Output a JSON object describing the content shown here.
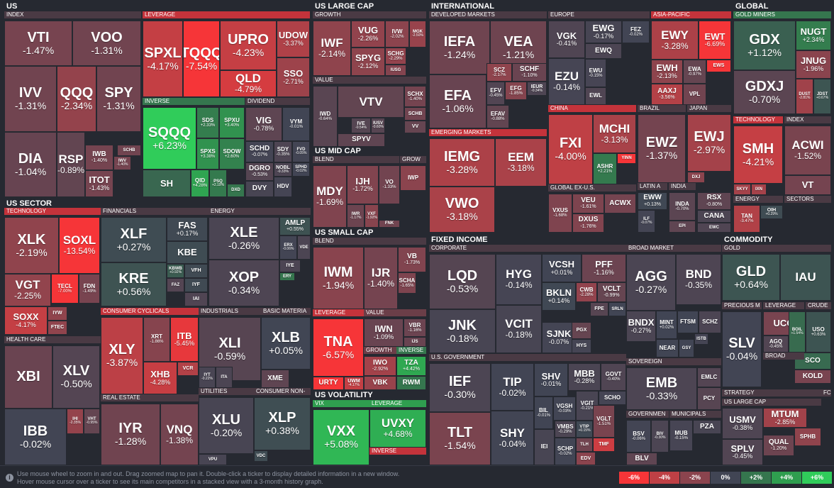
{
  "help": {
    "line1": "Use mouse wheel to zoom in and out. Drag zoomed map to pan it. Double-click a ticker to display detailed information in a new window.",
    "line2": "Hover mouse cursor over a ticker to see its main competitors in a stacked view with a 3-month history graph."
  },
  "legend": [
    {
      "label": "-6%",
      "color": "#f63538"
    },
    {
      "label": "-4%",
      "color": "#bf4045"
    },
    {
      "label": "-2%",
      "color": "#8b444e"
    },
    {
      "label": "0%",
      "color": "#414554"
    },
    {
      "label": "+2%",
      "color": "#35764e"
    },
    {
      "label": "+4%",
      "color": "#2f9e4f"
    },
    {
      "label": "+6%",
      "color": "#30cc5a"
    }
  ],
  "headers": [
    {
      "id": "us",
      "label": "US"
    },
    {
      "id": "us-large-cap",
      "label": "US LARGE CAP"
    },
    {
      "id": "international",
      "label": "INTERNATIONAL"
    },
    {
      "id": "global",
      "label": "GLOBAL"
    },
    {
      "id": "us-sector",
      "label": "US SECTOR"
    },
    {
      "id": "us-mid-cap",
      "label": "US MID CAP"
    },
    {
      "id": "us-small-cap",
      "label": "US SMALL CAP"
    },
    {
      "id": "fixed-income",
      "label": "FIXED INCOME"
    },
    {
      "id": "commodity",
      "label": "COMMODITY"
    },
    {
      "id": "us-volatility",
      "label": "US VOLATILITY"
    }
  ],
  "subheaders": [
    {
      "id": "index",
      "label": "INDEX"
    },
    {
      "id": "leverage",
      "label": "LEVERAGE"
    },
    {
      "id": "inverse",
      "label": "INVERSE"
    },
    {
      "id": "dividend",
      "label": "DIVIDEND"
    },
    {
      "id": "growth",
      "label": "GROWTH"
    },
    {
      "id": "value",
      "label": "VALUE"
    },
    {
      "id": "developed-markets",
      "label": "DEVELOPED MARKETS"
    },
    {
      "id": "europe",
      "label": "EUROPE"
    },
    {
      "id": "asia-pacific",
      "label": "ASIA-PACIFIC"
    },
    {
      "id": "china",
      "label": "CHINA"
    },
    {
      "id": "brazil",
      "label": "BRAZIL"
    },
    {
      "id": "japan",
      "label": "JAPAN"
    },
    {
      "id": "emerging-markets",
      "label": "EMERGING MARKETS"
    },
    {
      "id": "global-ex-us",
      "label": "GLOBAL EX-U.S."
    },
    {
      "id": "latin-a",
      "label": "LATIN A"
    },
    {
      "id": "india",
      "label": "INDIA"
    },
    {
      "id": "gold-miners",
      "label": "GOLD MINERS"
    },
    {
      "id": "technology",
      "label": "TECHNOLOGY"
    },
    {
      "id": "index-g",
      "label": "INDEX"
    },
    {
      "id": "energy-g",
      "label": "ENERGY"
    },
    {
      "id": "sectors",
      "label": "SECTORS"
    },
    {
      "id": "technology-s",
      "label": "TECHNOLOGY"
    },
    {
      "id": "financials",
      "label": "FINANCIALS"
    },
    {
      "id": "energy",
      "label": "ENERGY"
    },
    {
      "id": "consumer-cyclicals",
      "label": "CONSUMER CYCLICALS"
    },
    {
      "id": "industrials",
      "label": "INDUSTRIALS"
    },
    {
      "id": "basic-materia",
      "label": "BASIC MATERIA"
    },
    {
      "id": "health-care",
      "label": "HEALTH CARE"
    },
    {
      "id": "real-estate",
      "label": "REAL ESTATE"
    },
    {
      "id": "utilities",
      "label": "UTILITIES"
    },
    {
      "id": "consumer-non",
      "label": "CONSUMER NON-"
    },
    {
      "id": "blend-mid",
      "label": "BLEND"
    },
    {
      "id": "grow-mid",
      "label": "GROW"
    },
    {
      "id": "blend-small",
      "label": "BLEND"
    },
    {
      "id": "leverage-small",
      "label": "LEVERAGE"
    },
    {
      "id": "value-small",
      "label": "VALUE"
    },
    {
      "id": "growth-small",
      "label": "GROWTH"
    },
    {
      "id": "inverse-small",
      "label": "INVERSE"
    },
    {
      "id": "corporate",
      "label": "CORPORATE"
    },
    {
      "id": "broad-market",
      "label": "BROAD MARKET"
    },
    {
      "id": "us-government",
      "label": "U.S. GOVERNMENT"
    },
    {
      "id": "sovereign",
      "label": "SOVEREIGN"
    },
    {
      "id": "governmen",
      "label": "GOVERNMEN"
    },
    {
      "id": "municipals",
      "label": "MUNICIPALS"
    },
    {
      "id": "gold",
      "label": "GOLD"
    },
    {
      "id": "precious-m",
      "label": "PRECIOUS M"
    },
    {
      "id": "leverage-c",
      "label": "LEVERAGE"
    },
    {
      "id": "crude",
      "label": "CRUDE"
    },
    {
      "id": "broad-c",
      "label": "BROAD"
    },
    {
      "id": "strategy",
      "label": "STRATEGY"
    },
    {
      "id": "us-large-cap-s",
      "label": "US LARGE CAP"
    },
    {
      "id": "vix",
      "label": "VIX"
    },
    {
      "id": "leverage-vol",
      "label": "LEVERAGE"
    },
    {
      "id": "inverse-vol",
      "label": "INVERSE"
    },
    {
      "id": "fc",
      "label": "FC"
    }
  ],
  "chart_data": {
    "type": "heatmap",
    "color_scale": {
      "min": -6,
      "max": 6,
      "unit": "%"
    },
    "tiles": [
      {
        "t": "VTI",
        "v": -1.47
      },
      {
        "t": "VOO",
        "v": -1.31
      },
      {
        "t": "IVV",
        "v": -1.31
      },
      {
        "t": "QQQ",
        "v": -2.34
      },
      {
        "t": "SPY",
        "v": -1.31
      },
      {
        "t": "DIA",
        "v": -1.04
      },
      {
        "t": "RSP",
        "v": -0.89
      },
      {
        "t": "IWB",
        "v": -1.4
      },
      {
        "t": "IWV",
        "v": -1.4
      },
      {
        "t": "SCHB",
        "v": null
      },
      {
        "t": "ITOT",
        "v": -1.43
      },
      {
        "t": "SPXL",
        "v": -4.17
      },
      {
        "t": "TQQQ",
        "v": -7.54
      },
      {
        "t": "UPRO",
        "v": -4.23
      },
      {
        "t": "UDOW",
        "v": -3.37
      },
      {
        "t": "QLD",
        "v": -4.79
      },
      {
        "t": "SSO",
        "v": -2.71
      },
      {
        "t": "SQQQ",
        "v": 6.23
      },
      {
        "t": "SDS",
        "v": 2.33
      },
      {
        "t": "SPXU",
        "v": 3.4
      },
      {
        "t": "SPXS",
        "v": 3.38
      },
      {
        "t": "SDOW",
        "v": 2.6
      },
      {
        "t": "SH",
        "v": null
      },
      {
        "t": "QID",
        "v": 4.28
      },
      {
        "t": "PSQ",
        "v": 2.19
      },
      {
        "t": "DXD",
        "v": null
      },
      {
        "t": "VIG",
        "v": -0.78
      },
      {
        "t": "VYM",
        "v": -0.01
      },
      {
        "t": "SCHD",
        "v": -0.07
      },
      {
        "t": "SDY",
        "v": -0.35
      },
      {
        "t": "FVD",
        "v": -0.05
      },
      {
        "t": "NOBL",
        "v": -0.33
      },
      {
        "t": "SPHD",
        "v": -0.02
      },
      {
        "t": "DGRO",
        "v": -0.53
      },
      {
        "t": "DVY",
        "v": null
      },
      {
        "t": "HDV",
        "v": null
      },
      {
        "t": "IWF",
        "v": -2.14
      },
      {
        "t": "VUG",
        "v": -2.26
      },
      {
        "t": "IVW",
        "v": -2.02
      },
      {
        "t": "MGK",
        "v": -2.5
      },
      {
        "t": "SPYG",
        "v": -2.12
      },
      {
        "t": "SCHG",
        "v": -2.29
      },
      {
        "t": "IUSG",
        "v": null
      },
      {
        "t": "VTV",
        "v": null
      },
      {
        "t": "IWD",
        "v": -0.64
      },
      {
        "t": "IVE",
        "v": -0.54
      },
      {
        "t": "IUSV",
        "v": -0.6
      },
      {
        "t": "SCHX",
        "v": -1.4
      },
      {
        "t": "SCHB",
        "v": null
      },
      {
        "t": "VV",
        "v": null
      },
      {
        "t": "SPYV",
        "v": null
      },
      {
        "t": "BLEND",
        "v": null
      },
      {
        "t": "IEFA",
        "v": -1.24
      },
      {
        "t": "VEA",
        "v": -1.21
      },
      {
        "t": "EFA",
        "v": -1.06
      },
      {
        "t": "SCZ",
        "v": -2.17
      },
      {
        "t": "SCHF",
        "v": -1.1
      },
      {
        "t": "EFV",
        "v": -0.45
      },
      {
        "t": "EFG",
        "v": -1.85
      },
      {
        "t": "IEUR",
        "v": -0.34
      },
      {
        "t": "EFAV",
        "v": -0.88
      },
      {
        "t": "VGK",
        "v": -0.41
      },
      {
        "t": "EWG",
        "v": -0.17
      },
      {
        "t": "FEZ",
        "v": -0.02
      },
      {
        "t": "EWQ",
        "v": null
      },
      {
        "t": "EWL",
        "v": null
      },
      {
        "t": "EZU",
        "v": -0.14
      },
      {
        "t": "EWU",
        "v": -0.15
      },
      {
        "t": "EWY",
        "v": -3.28
      },
      {
        "t": "EWT",
        "v": -6.69
      },
      {
        "t": "EWH",
        "v": -2.13
      },
      {
        "t": "EWA",
        "v": -0.97
      },
      {
        "t": "EWS",
        "v": null
      },
      {
        "t": "AAXJ",
        "v": -3.56
      },
      {
        "t": "VPL",
        "v": null
      },
      {
        "t": "FXI",
        "v": -4.0
      },
      {
        "t": "MCHI",
        "v": -3.13
      },
      {
        "t": "ASHR",
        "v": 2.21
      },
      {
        "t": "YINN",
        "v": null
      },
      {
        "t": "EWZ",
        "v": -1.37
      },
      {
        "t": "EWJ",
        "v": -2.97
      },
      {
        "t": "DXJ",
        "v": null
      },
      {
        "t": "IEMG",
        "v": -3.28
      },
      {
        "t": "EEM",
        "v": -3.18
      },
      {
        "t": "VWO",
        "v": -3.18
      },
      {
        "t": "VXUS",
        "v": -1.68
      },
      {
        "t": "VEU",
        "v": -1.61
      },
      {
        "t": "ACWX",
        "v": null
      },
      {
        "t": "DXUS",
        "v": -1.76
      },
      {
        "t": "EWW",
        "v": 0.13
      },
      {
        "t": "ILF",
        "v": -0.07
      },
      {
        "t": "INDA",
        "v": -0.7
      },
      {
        "t": "EPI",
        "v": null
      },
      {
        "t": "RSX",
        "v": -0.8
      },
      {
        "t": "ERUS",
        "v": null
      },
      {
        "t": "CANA",
        "v": null
      },
      {
        "t": "EWC",
        "v": null
      },
      {
        "t": "GDX",
        "v": 1.12
      },
      {
        "t": "NUGT",
        "v": 2.34
      },
      {
        "t": "GDXJ",
        "v": -0.7
      },
      {
        "t": "JNUG",
        "v": -1.96
      },
      {
        "t": "DUST",
        "v": -2.81
      },
      {
        "t": "JDST",
        "v": 0.67
      },
      {
        "t": "SMH",
        "v": -4.21
      },
      {
        "t": "SKYY",
        "v": null
      },
      {
        "t": "IXN",
        "v": null
      },
      {
        "t": "ACWI",
        "v": -1.52
      },
      {
        "t": "VT",
        "v": null
      },
      {
        "t": "TAN",
        "v": -3.47
      },
      {
        "t": "OIH",
        "v": 0.29
      },
      {
        "t": "XLK",
        "v": -2.19
      },
      {
        "t": "SOXL",
        "v": -13.54
      },
      {
        "t": "VGT",
        "v": -2.25
      },
      {
        "t": "TECL",
        "v": -7.0
      },
      {
        "t": "FDN",
        "v": -1.49
      },
      {
        "t": "SOXX",
        "v": -4.17
      },
      {
        "t": "IYW",
        "v": null
      },
      {
        "t": "FTEC",
        "v": null
      },
      {
        "t": "XLF",
        "v": 0.27
      },
      {
        "t": "FAS",
        "v": 0.17
      },
      {
        "t": "KBE",
        "v": null
      },
      {
        "t": "KRE",
        "v": 0.56
      },
      {
        "t": "KBWB",
        "v": 0.92
      },
      {
        "t": "VFH",
        "v": null
      },
      {
        "t": "IYF",
        "v": null
      },
      {
        "t": "FAZ",
        "v": null
      },
      {
        "t": "IAI",
        "v": null
      },
      {
        "t": "XLE",
        "v": -0.26
      },
      {
        "t": "AMLP",
        "v": 0.55
      },
      {
        "t": "ERX",
        "v": -0.06
      },
      {
        "t": "VDE",
        "v": null
      },
      {
        "t": "IYE",
        "v": null
      },
      {
        "t": "XOP",
        "v": -0.34
      },
      {
        "t": "ERY",
        "v": null
      },
      {
        "t": "XLY",
        "v": -3.87
      },
      {
        "t": "XRT",
        "v": -1.86
      },
      {
        "t": "ITB",
        "v": -5.45
      },
      {
        "t": "XHB",
        "v": -4.28
      },
      {
        "t": "VCR",
        "v": null
      },
      {
        "t": "XLI",
        "v": -0.59
      },
      {
        "t": "IYT",
        "v": -0.22
      },
      {
        "t": "ITA",
        "v": null
      },
      {
        "t": "XLB",
        "v": 0.05
      },
      {
        "t": "XME",
        "v": null
      },
      {
        "t": "XBI",
        "v": null
      },
      {
        "t": "XLV",
        "v": -0.5
      },
      {
        "t": "IBB",
        "v": -0.02
      },
      {
        "t": "IHI",
        "v": -2.35
      },
      {
        "t": "VHT",
        "v": -0.95
      },
      {
        "t": "IYR",
        "v": -1.28
      },
      {
        "t": "VNQ",
        "v": -1.38
      },
      {
        "t": "XLU",
        "v": -0.2
      },
      {
        "t": "VPU",
        "v": null
      },
      {
        "t": "XLP",
        "v": 0.38
      },
      {
        "t": "VDC",
        "v": null
      },
      {
        "t": "MDY",
        "v": -1.69
      },
      {
        "t": "IJH",
        "v": -1.72
      },
      {
        "t": "VO",
        "v": -1.33
      },
      {
        "t": "IWR",
        "v": -1.17
      },
      {
        "t": "VXF",
        "v": -1.92
      },
      {
        "t": "IWP",
        "v": null
      },
      {
        "t": "FNK",
        "v": null
      },
      {
        "t": "IWM",
        "v": -1.94
      },
      {
        "t": "IJR",
        "v": -1.4
      },
      {
        "t": "VB",
        "v": -1.73
      },
      {
        "t": "SCHA",
        "v": -1.65
      },
      {
        "t": "TNA",
        "v": -6.57
      },
      {
        "t": "URTY",
        "v": null
      },
      {
        "t": "UWM",
        "v": -4.17
      },
      {
        "t": "IWN",
        "v": -1.09
      },
      {
        "t": "VBR",
        "v": -1.16
      },
      {
        "t": "IJS",
        "v": -1.07
      },
      {
        "t": "IWO",
        "v": -2.92
      },
      {
        "t": "VBK",
        "v": null
      },
      {
        "t": "TZA",
        "v": 4.42
      },
      {
        "t": "RWM",
        "v": null
      },
      {
        "t": "VXX",
        "v": 5.08
      },
      {
        "t": "UVXY",
        "v": 4.68
      },
      {
        "t": "LQD",
        "v": -0.53
      },
      {
        "t": "HYG",
        "v": -0.14
      },
      {
        "t": "VCSH",
        "v": 0.01
      },
      {
        "t": "PFF",
        "v": -1.16
      },
      {
        "t": "JNK",
        "v": -0.18
      },
      {
        "t": "VCIT",
        "v": -0.18
      },
      {
        "t": "BKLN",
        "v": 0.14
      },
      {
        "t": "CWB",
        "v": -2.28
      },
      {
        "t": "VCLT",
        "v": -0.99
      },
      {
        "t": "FPE",
        "v": null
      },
      {
        "t": "SRLN",
        "v": null
      },
      {
        "t": "SJNK",
        "v": -0.07
      },
      {
        "t": "PGX",
        "v": null
      },
      {
        "t": "HYS",
        "v": null
      },
      {
        "t": "AGG",
        "v": -0.27
      },
      {
        "t": "BND",
        "v": -0.35
      },
      {
        "t": "BNDX",
        "v": -0.27
      },
      {
        "t": "MINT",
        "v": 0.02
      },
      {
        "t": "FTSM",
        "v": null
      },
      {
        "t": "SCHZ",
        "v": null
      },
      {
        "t": "NEAR",
        "v": null
      },
      {
        "t": "GSY",
        "v": null
      },
      {
        "t": "ISTB",
        "v": null
      },
      {
        "t": "IEF",
        "v": -0.3
      },
      {
        "t": "TIP",
        "v": -0.02
      },
      {
        "t": "SHV",
        "v": -0.01
      },
      {
        "t": "MBB",
        "v": -0.28
      },
      {
        "t": "GOVT",
        "v": -0.4
      },
      {
        "t": "TLT",
        "v": -1.54
      },
      {
        "t": "SHY",
        "v": -0.04
      },
      {
        "t": "IEI",
        "v": null
      },
      {
        "t": "BIL",
        "v": -0.01
      },
      {
        "t": "VGSH",
        "v": -0.03
      },
      {
        "t": "VGIT",
        "v": -0.21
      },
      {
        "t": "SCHO",
        "v": null
      },
      {
        "t": "VTIP",
        "v": 0.15
      },
      {
        "t": "VGLT",
        "v": -1.51
      },
      {
        "t": "TLH",
        "v": null
      },
      {
        "t": "TMF",
        "v": null
      },
      {
        "t": "SCHP",
        "v": -0.02
      },
      {
        "t": "EDV",
        "v": null
      },
      {
        "t": "VMBS",
        "v": -0.29
      },
      {
        "t": "EMB",
        "v": -0.33
      },
      {
        "t": "EMLC",
        "v": null
      },
      {
        "t": "PCY",
        "v": null
      },
      {
        "t": "BSV",
        "v": -0.06
      },
      {
        "t": "BIV",
        "v": -0.3
      },
      {
        "t": "MUB",
        "v": -0.15
      },
      {
        "t": "PZA",
        "v": null
      },
      {
        "t": "BLV",
        "v": null
      },
      {
        "t": "GLD",
        "v": 0.64
      },
      {
        "t": "IAU",
        "v": null
      },
      {
        "t": "SLV",
        "v": -0.04
      },
      {
        "t": "UCO",
        "v": null
      },
      {
        "t": "AGQ",
        "v": -0.45
      },
      {
        "t": "BOIL",
        "v": 1.54
      },
      {
        "t": "USO",
        "v": 0.63
      },
      {
        "t": "SCO",
        "v": null
      },
      {
        "t": "KOLD",
        "v": null
      },
      {
        "t": "USMV",
        "v": -0.38
      },
      {
        "t": "MTUM",
        "v": -2.85
      },
      {
        "t": "SPHB",
        "v": null
      },
      {
        "t": "SPLV",
        "v": -0.45
      },
      {
        "t": "QUAL",
        "v": -1.2
      }
    ]
  }
}
